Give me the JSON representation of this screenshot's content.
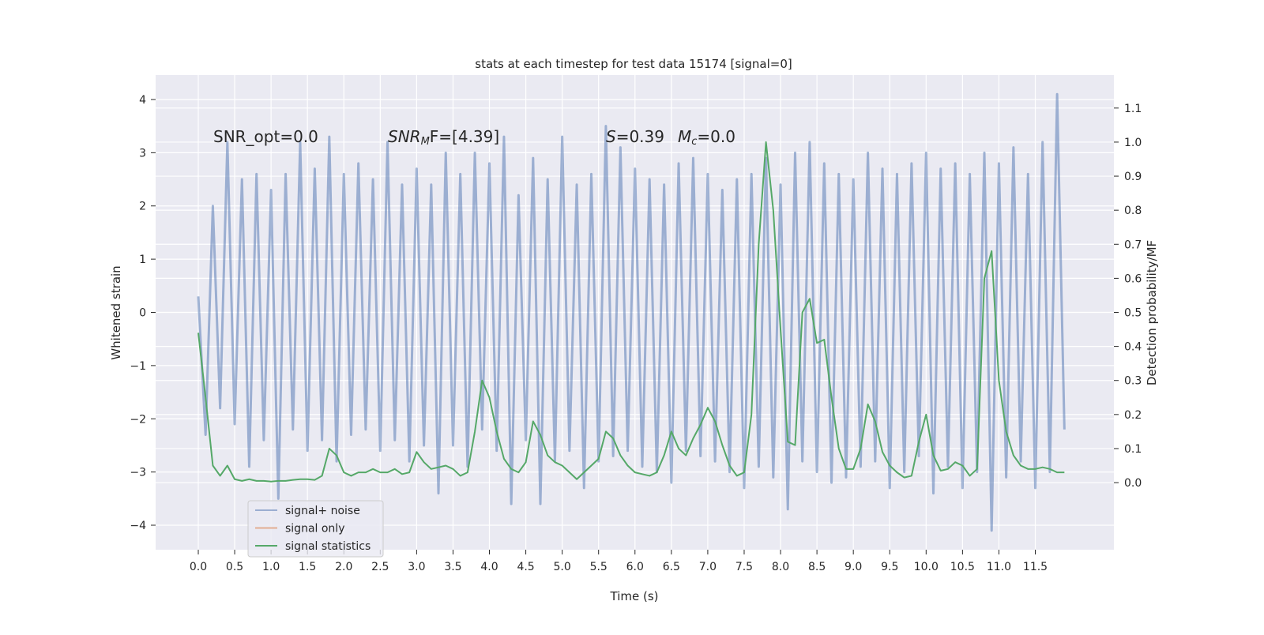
{
  "chart_data": {
    "type": "line",
    "title": "stats at each timestep for test data 15174 [signal=0]",
    "xlabel": "Time (s)",
    "ylabel": "Whitened strain",
    "y2label": "Detection probability/MF",
    "annotations": [
      "SNR_opt=0.0",
      [
        "SNR",
        "M",
        "F=[4.39]"
      ],
      [
        "S",
        "=0.39"
      ],
      [
        "M",
        "c",
        "=0.0"
      ]
    ],
    "grid": true,
    "legend": "lower left",
    "xlim": [
      -0.586,
      12.58
    ],
    "ylim": [
      -4.46,
      4.46
    ],
    "y2lim": [
      -0.197,
      1.197
    ],
    "xticks": [
      {
        "value": 0,
        "label": "0.0"
      },
      0.5,
      {
        "value": 1,
        "label": "1.0"
      },
      1.5,
      {
        "value": 2,
        "label": "2.0"
      },
      2.5,
      {
        "value": 3,
        "label": "3.0"
      },
      3.5,
      {
        "value": 4,
        "label": "4.0"
      },
      4.5,
      {
        "value": 5,
        "label": "5.0"
      },
      5.5,
      {
        "value": 6,
        "label": "6.0"
      },
      6.5,
      {
        "value": 7,
        "label": "7.0"
      },
      7.5,
      {
        "value": 8,
        "label": "8.0"
      },
      8.5,
      {
        "value": 9,
        "label": "9.0"
      },
      9.5,
      {
        "value": 10,
        "label": "10.0"
      },
      10.5,
      {
        "value": 11,
        "label": "11.0"
      },
      11.5
    ],
    "yticks": [
      {
        "value": -4,
        "label": "−4"
      },
      {
        "value": -3,
        "label": "−3"
      },
      {
        "value": -2,
        "label": "−2"
      },
      {
        "value": -1,
        "label": "−1"
      },
      0,
      1,
      2,
      3,
      4
    ],
    "y2ticks": [
      {
        "value": 0,
        "label": "0.0"
      },
      0.1,
      0.2,
      0.3,
      0.4,
      0.5,
      0.6,
      0.7,
      0.8,
      0.9,
      {
        "value": 1,
        "label": "1.0"
      },
      1.1
    ],
    "x": [
      0.0,
      0.1,
      0.2,
      0.3,
      0.4,
      0.5,
      0.6,
      0.7,
      0.8,
      0.9,
      1.0,
      1.1,
      1.2,
      1.3,
      1.4,
      1.5,
      1.6,
      1.7,
      1.8,
      1.9,
      2.0,
      2.1,
      2.2,
      2.3,
      2.4,
      2.5,
      2.6,
      2.7,
      2.8,
      2.9,
      3.0,
      3.1,
      3.2,
      3.3,
      3.4,
      3.5,
      3.6,
      3.7,
      3.8,
      3.9,
      4.0,
      4.1,
      4.2,
      4.3,
      4.4,
      4.5,
      4.6,
      4.7,
      4.8,
      4.9,
      5.0,
      5.1,
      5.2,
      5.3,
      5.4,
      5.5,
      5.6,
      5.7,
      5.8,
      5.9,
      6.0,
      6.1,
      6.2,
      6.3,
      6.4,
      6.5,
      6.6,
      6.7,
      6.8,
      6.9,
      7.0,
      7.1,
      7.2,
      7.3,
      7.4,
      7.5,
      7.6,
      7.7,
      7.8,
      7.9,
      8.0,
      8.1,
      8.2,
      8.3,
      8.4,
      8.5,
      8.6,
      8.7,
      8.8,
      8.9,
      9.0,
      9.1,
      9.2,
      9.3,
      9.4,
      9.5,
      9.6,
      9.7,
      9.8,
      9.9,
      10.0,
      10.1,
      10.2,
      10.3,
      10.4,
      10.5,
      10.6,
      10.7,
      10.8,
      10.9,
      11.0,
      11.1,
      11.2,
      11.3,
      11.4,
      11.5,
      11.6,
      11.7,
      11.8,
      11.9
    ],
    "series": [
      {
        "name": "signal+ noise",
        "color": "#4c72b0",
        "values": [
          0.3,
          -2.3,
          2.0,
          -1.8,
          3.2,
          -2.1,
          2.5,
          -2.9,
          2.6,
          -2.4,
          2.3,
          -3.5,
          2.6,
          -2.2,
          3.2,
          -2.6,
          2.7,
          -2.4,
          3.3,
          -2.8,
          2.6,
          -2.3,
          2.8,
          -2.2,
          2.5,
          -2.6,
          3.2,
          -2.4,
          2.4,
          -2.8,
          2.7,
          -2.5,
          2.4,
          -3.4,
          3.0,
          -2.5,
          2.6,
          -2.9,
          3.0,
          -2.2,
          2.8,
          -2.6,
          3.3,
          -3.6,
          2.2,
          -2.4,
          2.9,
          -3.6,
          2.5,
          -2.8,
          3.3,
          -2.6,
          2.4,
          -3.3,
          2.6,
          -2.8,
          3.5,
          -2.7,
          3.1,
          -2.6,
          2.7,
          -2.9,
          2.5,
          -3.0,
          2.4,
          -3.2,
          2.8,
          -2.6,
          2.9,
          -2.7,
          2.6,
          -2.8,
          2.3,
          -3.0,
          2.5,
          -3.3,
          2.6,
          -2.9,
          2.9,
          -3.1,
          2.4,
          -3.7,
          3.0,
          -2.8,
          3.2,
          -3.0,
          2.8,
          -3.2,
          2.6,
          -3.1,
          2.5,
          -2.9,
          3.0,
          -2.8,
          2.7,
          -3.3,
          2.6,
          -3.0,
          2.8,
          -2.7,
          3.0,
          -3.4,
          2.7,
          -2.9,
          2.8,
          -3.3,
          2.6,
          -3.0,
          3.0,
          -4.1,
          2.8,
          -3.1,
          3.1,
          -2.8,
          2.6,
          -3.3,
          3.2,
          -3.0,
          4.1,
          -2.2
        ]
      },
      {
        "name": "signal only",
        "color": "#dd8452",
        "values": [
          null,
          null,
          null,
          null,
          null,
          null,
          null,
          null,
          null,
          null,
          null,
          null,
          null,
          null,
          null,
          null,
          null,
          null,
          null,
          null,
          null,
          null,
          null,
          null,
          null,
          null,
          null,
          null,
          null,
          null,
          null,
          null,
          null,
          null,
          null,
          null,
          null,
          null,
          null,
          null,
          null,
          null,
          null,
          null,
          null,
          null,
          null,
          null,
          null,
          null,
          null,
          null,
          null,
          null,
          null,
          null,
          null,
          null,
          null,
          null,
          null,
          null,
          null,
          null,
          null,
          null,
          null,
          null,
          null,
          null,
          null,
          null,
          null,
          null,
          null,
          null,
          null,
          null,
          null,
          null,
          null,
          null,
          null,
          null,
          null,
          null,
          null,
          null,
          null,
          null,
          null,
          null,
          null,
          null,
          null,
          null,
          null,
          null,
          null,
          null,
          null,
          null,
          null,
          null,
          null,
          null,
          null,
          null,
          null,
          null,
          null,
          null,
          null,
          null,
          null,
          null,
          null,
          null,
          null,
          null
        ]
      },
      {
        "name": "signal statistics",
        "color": "#55a868",
        "axis": "y2",
        "values": [
          0.44,
          0.25,
          0.05,
          0.02,
          0.05,
          0.01,
          0.005,
          0.01,
          0.005,
          0.005,
          0.003,
          0.005,
          0.005,
          0.008,
          0.01,
          0.01,
          0.008,
          0.02,
          0.1,
          0.08,
          0.03,
          0.02,
          0.03,
          0.03,
          0.04,
          0.03,
          0.03,
          0.04,
          0.025,
          0.03,
          0.09,
          0.06,
          0.04,
          0.045,
          0.05,
          0.04,
          0.02,
          0.03,
          0.15,
          0.3,
          0.25,
          0.15,
          0.07,
          0.04,
          0.03,
          0.06,
          0.18,
          0.14,
          0.08,
          0.06,
          0.05,
          0.03,
          0.01,
          0.03,
          0.05,
          0.07,
          0.15,
          0.13,
          0.08,
          0.05,
          0.03,
          0.025,
          0.02,
          0.03,
          0.08,
          0.15,
          0.1,
          0.08,
          0.13,
          0.17,
          0.22,
          0.18,
          0.11,
          0.05,
          0.02,
          0.03,
          0.2,
          0.7,
          1.0,
          0.8,
          0.45,
          0.12,
          0.11,
          0.5,
          0.54,
          0.41,
          0.42,
          0.25,
          0.1,
          0.04,
          0.04,
          0.1,
          0.23,
          0.18,
          0.09,
          0.05,
          0.03,
          0.015,
          0.02,
          0.12,
          0.2,
          0.08,
          0.035,
          0.04,
          0.06,
          0.05,
          0.02,
          0.04,
          0.6,
          0.68,
          0.3,
          0.15,
          0.08,
          0.05,
          0.04,
          0.04,
          0.045,
          0.04,
          0.03,
          0.03
        ]
      }
    ]
  }
}
